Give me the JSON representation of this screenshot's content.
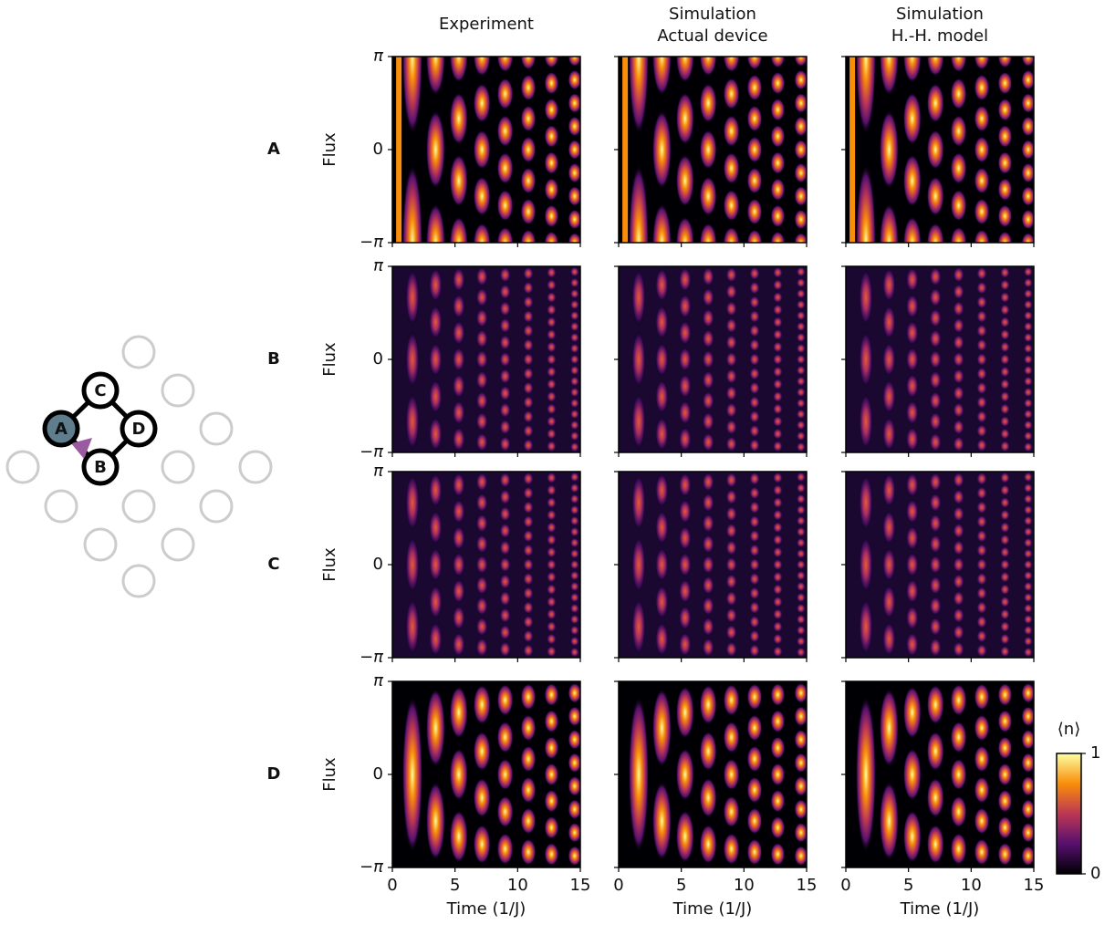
{
  "chart_data": {
    "type": "heatmap-grid",
    "columns": [
      {
        "title": "Experiment"
      },
      {
        "title": "Simulation",
        "subtitle": "Actual device"
      },
      {
        "title": "Simulation",
        "subtitle": "H.-H. model"
      }
    ],
    "rows": [
      {
        "label": "A",
        "color": "#4f6e80"
      },
      {
        "label": "B",
        "color": "#6a4b9a"
      },
      {
        "label": "C",
        "color": "#c2287a"
      },
      {
        "label": "D",
        "color": "#f05a0b"
      }
    ],
    "xlabel": "Time (1/J)",
    "ylabel": "Flux",
    "xlim": [
      0,
      15
    ],
    "xticks": [
      0,
      5,
      10,
      15
    ],
    "ylim": [
      -3.141592653589793,
      3.141592653589793
    ],
    "yticks": [
      {
        "value": -3.141592653589793,
        "label": "−π"
      },
      0,
      {
        "value": 3.141592653589793,
        "label": "π"
      }
    ],
    "colorbar": {
      "label": "⟨n⟩",
      "lim": [
        0,
        1
      ],
      "ticks": [
        0,
        1
      ]
    },
    "lattice": {
      "nodes": [
        {
          "label": "A",
          "color": "#5f7d8c"
        },
        {
          "label": "B",
          "color": "#6a4b9a"
        },
        {
          "label": "C",
          "color": "#c2287a"
        },
        {
          "label": "D",
          "color": "#f05a0b"
        }
      ]
    }
  }
}
